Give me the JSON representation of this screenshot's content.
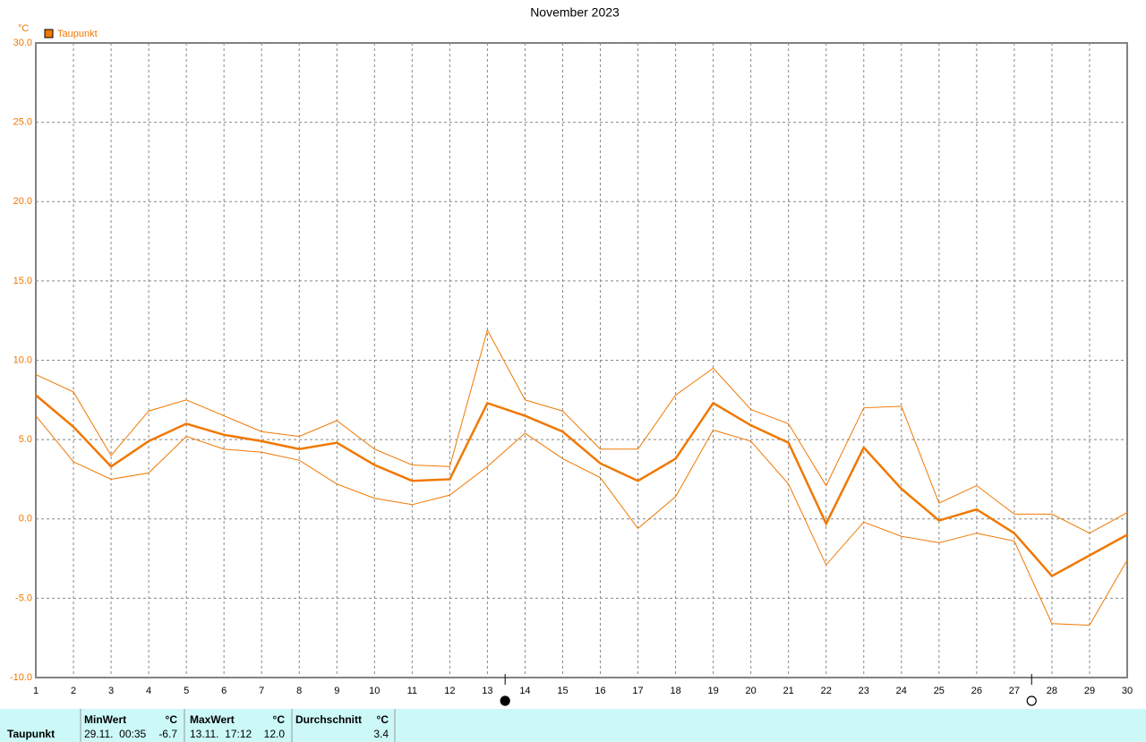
{
  "chart_data": {
    "type": "line",
    "title": "November 2023",
    "y_unit": "°C",
    "x": [
      1,
      2,
      3,
      4,
      5,
      6,
      7,
      8,
      9,
      10,
      11,
      12,
      13,
      14,
      15,
      16,
      17,
      18,
      19,
      20,
      21,
      22,
      23,
      24,
      25,
      26,
      27,
      28,
      29,
      30
    ],
    "series": [
      {
        "name": "Taupunkt",
        "color": "#f07800",
        "values": [
          7.8,
          5.8,
          3.3,
          4.9,
          6.0,
          5.3,
          4.9,
          4.4,
          4.8,
          3.4,
          2.4,
          2.5,
          7.3,
          6.5,
          5.5,
          3.5,
          2.4,
          3.8,
          7.3,
          5.9,
          4.8,
          -0.3,
          4.5,
          1.9,
          -0.1,
          0.6,
          -0.9,
          -3.6,
          -2.3,
          -1.0
        ],
        "max_values": [
          9.1,
          8.0,
          4.0,
          6.8,
          7.5,
          6.5,
          5.5,
          5.2,
          6.2,
          4.4,
          3.4,
          3.3,
          11.9,
          7.5,
          6.8,
          4.4,
          4.4,
          7.8,
          9.5,
          6.9,
          6.0,
          2.1,
          7.0,
          7.1,
          1.0,
          2.1,
          0.3,
          0.3,
          -0.9,
          0.4
        ],
        "min_values": [
          6.5,
          3.6,
          2.5,
          2.9,
          5.2,
          4.4,
          4.2,
          3.7,
          2.2,
          1.3,
          0.9,
          1.5,
          3.3,
          5.4,
          3.8,
          2.6,
          -0.6,
          1.4,
          5.6,
          4.9,
          2.2,
          -2.9,
          -0.2,
          -1.1,
          -1.5,
          -0.9,
          -1.4,
          -6.6,
          -6.7,
          -2.6
        ]
      }
    ],
    "xlim": [
      1,
      30
    ],
    "xticks": [
      1,
      2,
      3,
      4,
      5,
      6,
      7,
      8,
      9,
      10,
      11,
      12,
      13,
      14,
      15,
      16,
      17,
      18,
      19,
      20,
      21,
      22,
      23,
      24,
      25,
      26,
      27,
      28,
      29,
      30
    ],
    "ylim": [
      -10,
      30
    ],
    "yticks": [
      {
        "value": -10,
        "label": "-10.0"
      },
      {
        "value": -5,
        "label": "-5.0"
      },
      {
        "value": 0,
        "label": "0.0"
      },
      {
        "value": 5,
        "label": "5.0"
      },
      {
        "value": 10,
        "label": "10.0"
      },
      {
        "value": 15,
        "label": "15.0"
      },
      {
        "value": 20,
        "label": "20.0"
      },
      {
        "value": 25,
        "label": "25.0"
      },
      {
        "value": 30,
        "label": "30.0"
      }
    ],
    "grid": true,
    "legend": "top-left",
    "moon_markers": [
      {
        "x": 13.47,
        "filled": true
      },
      {
        "x": 27.46,
        "filled": false
      }
    ]
  },
  "summary": {
    "row_label": "Taupunkt",
    "columns": [
      {
        "header": "MinWert",
        "unit": "°C",
        "time": "29.11.  00:35",
        "value": "-6.7"
      },
      {
        "header": "MaxWert",
        "unit": "°C",
        "time": "13.11.  17:12",
        "value": "12.0"
      },
      {
        "header": "Durchschnitt",
        "unit": "°C",
        "value": "3.4"
      }
    ]
  }
}
